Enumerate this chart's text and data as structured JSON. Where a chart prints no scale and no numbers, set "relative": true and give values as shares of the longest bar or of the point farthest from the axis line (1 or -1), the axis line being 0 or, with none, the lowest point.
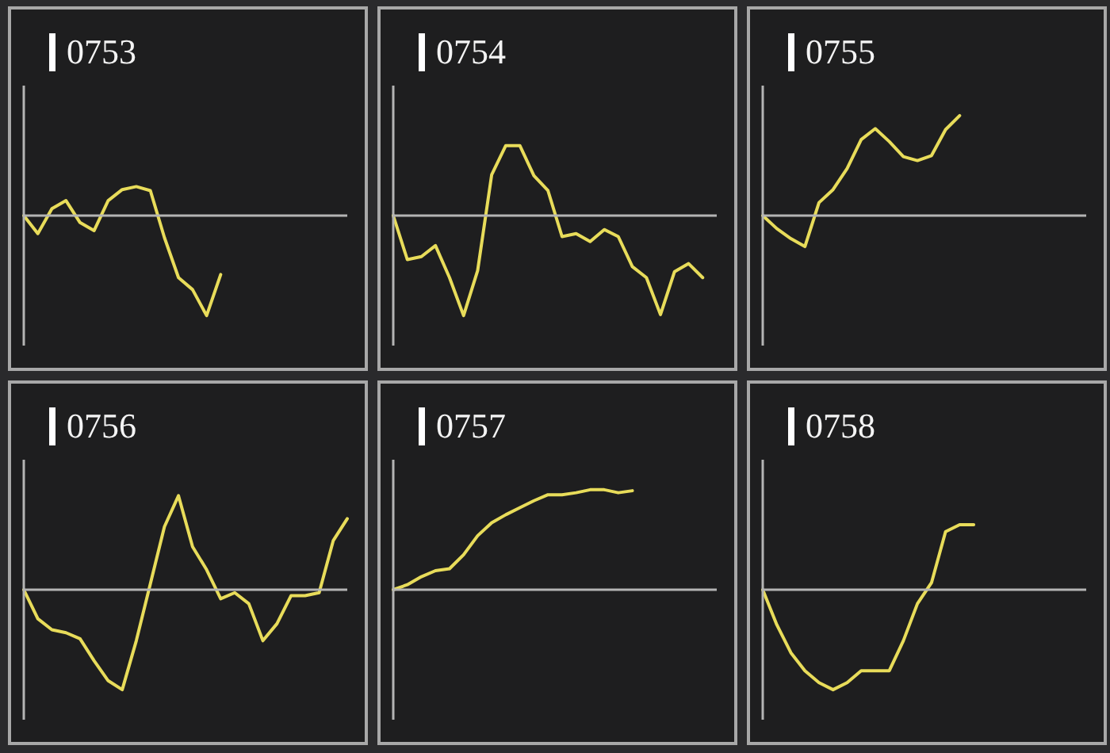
{
  "chart_data": [
    {
      "type": "line",
      "title": "0753",
      "relative": true,
      "tick_labels": false,
      "categories": [
        null,
        null,
        null,
        null,
        null,
        null,
        null,
        null,
        null,
        null,
        null,
        null,
        null,
        null,
        null,
        null,
        null,
        null,
        null,
        null,
        null,
        null,
        null,
        null
      ],
      "series": [
        {
          "color": "#e8dc5a",
          "values": [
            0,
            -0.18,
            0.07,
            0.15,
            -0.07,
            -0.15,
            0.15,
            0.26,
            0.29,
            0.25,
            -0.22,
            -0.62,
            -0.74,
            -1,
            -0.59,
            null,
            null,
            null,
            null,
            null,
            null,
            null,
            null,
            null
          ]
        }
      ]
    },
    {
      "type": "line",
      "title": "0754",
      "relative": true,
      "tick_labels": false,
      "categories": [
        null,
        null,
        null,
        null,
        null,
        null,
        null,
        null,
        null,
        null,
        null,
        null,
        null,
        null,
        null,
        null,
        null,
        null,
        null,
        null,
        null,
        null,
        null,
        null
      ],
      "series": [
        {
          "color": "#e8dc5a",
          "values": [
            0,
            -0.44,
            -0.41,
            -0.3,
            -0.62,
            -1,
            -0.55,
            0.41,
            0.7,
            0.7,
            0.4,
            0.25,
            -0.21,
            -0.18,
            -0.26,
            -0.14,
            -0.21,
            -0.51,
            -0.62,
            -0.99,
            -0.56,
            -0.48,
            -0.62,
            null
          ]
        }
      ]
    },
    {
      "type": "line",
      "title": "0755",
      "relative": true,
      "tick_labels": false,
      "categories": [
        null,
        null,
        null,
        null,
        null,
        null,
        null,
        null,
        null,
        null,
        null,
        null,
        null,
        null,
        null,
        null,
        null,
        null,
        null,
        null,
        null,
        null,
        null,
        null
      ],
      "series": [
        {
          "color": "#e8dc5a",
          "values": [
            0,
            -0.13,
            -0.23,
            -0.31,
            0.13,
            0.26,
            0.47,
            0.76,
            0.87,
            0.74,
            0.59,
            0.55,
            0.6,
            0.86,
            1,
            null,
            null,
            null,
            null,
            null,
            null,
            null,
            null,
            null
          ]
        }
      ]
    },
    {
      "type": "line",
      "title": "0756",
      "relative": true,
      "tick_labels": false,
      "categories": [
        null,
        null,
        null,
        null,
        null,
        null,
        null,
        null,
        null,
        null,
        null,
        null,
        null,
        null,
        null,
        null,
        null,
        null,
        null,
        null,
        null,
        null,
        null,
        null
      ],
      "series": [
        {
          "color": "#e8dc5a",
          "values": [
            0,
            -0.29,
            -0.4,
            -0.43,
            -0.49,
            -0.71,
            -0.91,
            -1,
            -0.51,
            0.06,
            0.63,
            0.94,
            0.43,
            0.2,
            -0.09,
            -0.03,
            -0.14,
            -0.51,
            -0.34,
            -0.06,
            -0.06,
            -0.03,
            0.49,
            0.71
          ]
        }
      ]
    },
    {
      "type": "line",
      "title": "0757",
      "relative": true,
      "tick_labels": false,
      "categories": [
        null,
        null,
        null,
        null,
        null,
        null,
        null,
        null,
        null,
        null,
        null,
        null,
        null,
        null,
        null,
        null,
        null,
        null,
        null,
        null,
        null,
        null,
        null,
        null
      ],
      "series": [
        {
          "color": "#e8dc5a",
          "values": [
            0,
            0.05,
            0.13,
            0.19,
            0.21,
            0.35,
            0.54,
            0.67,
            0.75,
            0.82,
            0.89,
            0.95,
            0.95,
            0.97,
            1,
            1,
            0.97,
            0.99,
            null,
            null,
            null,
            null,
            null,
            null
          ]
        }
      ]
    },
    {
      "type": "line",
      "title": "0758",
      "relative": true,
      "tick_labels": false,
      "categories": [
        null,
        null,
        null,
        null,
        null,
        null,
        null,
        null,
        null,
        null,
        null,
        null,
        null,
        null,
        null,
        null,
        null,
        null,
        null,
        null,
        null,
        null,
        null,
        null
      ],
      "series": [
        {
          "color": "#e8dc5a",
          "values": [
            0,
            -0.35,
            -0.63,
            -0.81,
            -0.93,
            -1,
            -0.93,
            -0.81,
            -0.81,
            -0.81,
            -0.51,
            -0.14,
            0.07,
            0.58,
            0.65,
            0.65,
            null,
            null,
            null,
            null,
            null,
            null,
            null,
            null
          ]
        }
      ]
    }
  ]
}
